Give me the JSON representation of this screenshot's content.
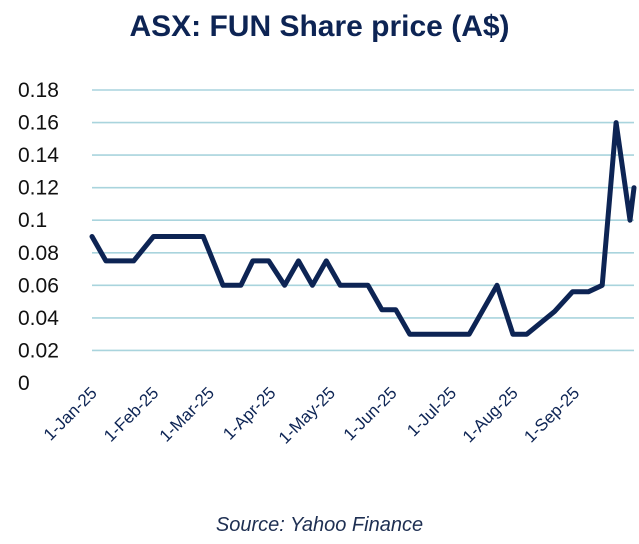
{
  "chart_data": {
    "type": "line",
    "title": "ASX: FUN Share price (A$)",
    "source": "Source: Yahoo Finance",
    "xlabel": "",
    "ylabel": "",
    "ylim": [
      0,
      0.18
    ],
    "yticks": [
      "0",
      "0.02",
      "0.04",
      "0.06",
      "0.08",
      "0.1",
      "0.12",
      "0.14",
      "0.16",
      "0.18"
    ],
    "xticks": [
      "1-Jan-25",
      "1-Feb-25",
      "1-Mar-25",
      "1-Apr-25",
      "1-May-25",
      "1-Jun-25",
      "1-Jul-25",
      "1-Aug-25",
      "1-Sep-25"
    ],
    "grid": true,
    "legend": "none",
    "line_color": "#0d2454",
    "grid_color": "#a9d4dd",
    "x": [
      "2025-01-01",
      "2025-01-08",
      "2025-01-22",
      "2025-02-01",
      "2025-02-26",
      "2025-03-08",
      "2025-03-17",
      "2025-03-23",
      "2025-03-31",
      "2025-04-08",
      "2025-04-15",
      "2025-04-22",
      "2025-04-29",
      "2025-05-06",
      "2025-05-20",
      "2025-05-27",
      "2025-06-03",
      "2025-06-10",
      "2025-07-10",
      "2025-07-24",
      "2025-08-01",
      "2025-08-08",
      "2025-08-22",
      "2025-08-31",
      "2025-09-08",
      "2025-09-15",
      "2025-09-22",
      "2025-09-29",
      "2025-10-01"
    ],
    "y": [
      0.09,
      0.075,
      0.075,
      0.09,
      0.09,
      0.06,
      0.06,
      0.075,
      0.075,
      0.06,
      0.075,
      0.06,
      0.075,
      0.06,
      0.06,
      0.045,
      0.045,
      0.03,
      0.03,
      0.06,
      0.03,
      0.03,
      0.044,
      0.056,
      0.056,
      0.06,
      0.16,
      0.1,
      0.12
    ]
  }
}
